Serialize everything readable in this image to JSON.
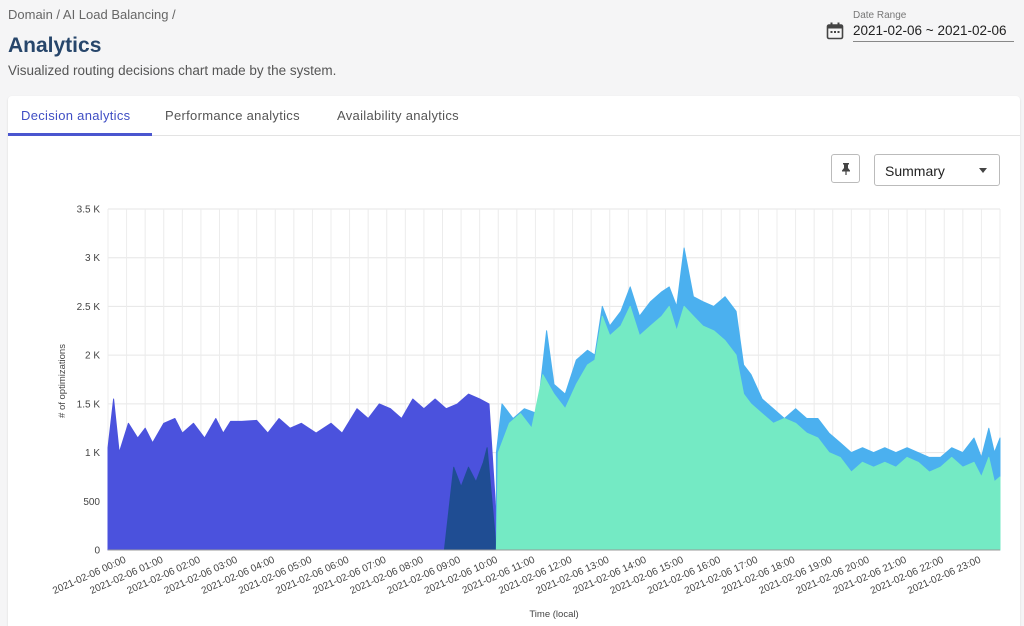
{
  "header": {
    "breadcrumb": "Domain / AI Load Balancing /",
    "title": "Analytics",
    "subtitle": "Visualized routing decisions chart made by the system.",
    "date_range_label": "Date Range",
    "date_range_value": "2021-02-06 ~ 2021-02-06"
  },
  "tabs": [
    {
      "label": "Decision analytics",
      "active": true
    },
    {
      "label": "Performance analytics",
      "active": false
    },
    {
      "label": "Availability analytics",
      "active": false
    }
  ],
  "toolbar": {
    "pin_icon": "pin-icon",
    "view_select_value": "Summary"
  },
  "chart_data": {
    "type": "area",
    "xlabel": "Time (local)",
    "ylabel": "# of optimizations",
    "ylim": [
      0,
      3500
    ],
    "y_ticks": [
      0,
      500,
      1000,
      1500,
      2000,
      2500,
      3000,
      3500
    ],
    "y_tick_labels": [
      "0",
      "500",
      "1 K",
      "1.5 K",
      "2 K",
      "2.5 K",
      "3 K",
      "3.5 K"
    ],
    "x_range_hours": [
      0,
      24
    ],
    "x_tick_labels": [
      "2021-02-06 00:00",
      "2021-02-06 01:00",
      "2021-02-06 02:00",
      "2021-02-06 03:00",
      "2021-02-06 04:00",
      "2021-02-06 05:00",
      "2021-02-06 06:00",
      "2021-02-06 07:00",
      "2021-02-06 08:00",
      "2021-02-06 09:00",
      "2021-02-06 10:00",
      "2021-02-06 11:00",
      "2021-02-06 12:00",
      "2021-02-06 13:00",
      "2021-02-06 14:00",
      "2021-02-06 15:00",
      "2021-02-06 16:00",
      "2021-02-06 17:00",
      "2021-02-06 18:00",
      "2021-02-06 19:00",
      "2021-02-06 20:00",
      "2021-02-06 21:00",
      "2021-02-06 22:00",
      "2021-02-06 23:00"
    ],
    "grid": true,
    "colors": {
      "blue": "#4b52dd",
      "navy": "#1f4d93",
      "lightblue": "#4bb0ef",
      "green": "#74eac4"
    },
    "series": [
      {
        "color": "#4b52dd",
        "points": [
          [
            0,
            1050
          ],
          [
            0.15,
            1550
          ],
          [
            0.3,
            1000
          ],
          [
            0.55,
            1300
          ],
          [
            0.8,
            1150
          ],
          [
            1.0,
            1250
          ],
          [
            1.2,
            1100
          ],
          [
            1.5,
            1300
          ],
          [
            1.8,
            1350
          ],
          [
            2.0,
            1200
          ],
          [
            2.3,
            1300
          ],
          [
            2.6,
            1150
          ],
          [
            2.9,
            1350
          ],
          [
            3.1,
            1200
          ],
          [
            3.3,
            1320
          ],
          [
            3.6,
            1320
          ],
          [
            4.0,
            1330
          ],
          [
            4.3,
            1200
          ],
          [
            4.6,
            1350
          ],
          [
            4.9,
            1250
          ],
          [
            5.2,
            1300
          ],
          [
            5.6,
            1200
          ],
          [
            6.0,
            1300
          ],
          [
            6.3,
            1200
          ],
          [
            6.7,
            1450
          ],
          [
            7.0,
            1350
          ],
          [
            7.3,
            1500
          ],
          [
            7.6,
            1450
          ],
          [
            7.9,
            1350
          ],
          [
            8.2,
            1550
          ],
          [
            8.5,
            1450
          ],
          [
            8.8,
            1550
          ],
          [
            9.1,
            1450
          ],
          [
            9.4,
            1500
          ],
          [
            9.7,
            1600
          ],
          [
            10.0,
            1550
          ],
          [
            10.25,
            1500
          ],
          [
            10.5,
            0
          ]
        ]
      },
      {
        "color": "#1f4d93",
        "points": [
          [
            9.05,
            0
          ],
          [
            9.3,
            850
          ],
          [
            9.5,
            650
          ],
          [
            9.7,
            850
          ],
          [
            9.9,
            700
          ],
          [
            10.1,
            900
          ],
          [
            10.2,
            1050
          ],
          [
            10.45,
            0
          ]
        ]
      },
      {
        "color": "#4bb0ef",
        "points": [
          [
            10.45,
            1000
          ],
          [
            10.6,
            1500
          ],
          [
            10.9,
            1350
          ],
          [
            11.2,
            1450
          ],
          [
            11.55,
            1400
          ],
          [
            11.8,
            2250
          ],
          [
            12.0,
            1700
          ],
          [
            12.3,
            1600
          ],
          [
            12.6,
            1950
          ],
          [
            12.9,
            2050
          ],
          [
            13.1,
            2000
          ],
          [
            13.3,
            2500
          ],
          [
            13.5,
            2300
          ],
          [
            13.8,
            2450
          ],
          [
            14.05,
            2700
          ],
          [
            14.3,
            2400
          ],
          [
            14.6,
            2550
          ],
          [
            14.9,
            2650
          ],
          [
            15.1,
            2700
          ],
          [
            15.3,
            2500
          ],
          [
            15.5,
            3100
          ],
          [
            15.75,
            2600
          ],
          [
            16.0,
            2550
          ],
          [
            16.3,
            2500
          ],
          [
            16.6,
            2600
          ],
          [
            16.9,
            2450
          ],
          [
            17.1,
            1900
          ],
          [
            17.3,
            1800
          ],
          [
            17.6,
            1550
          ],
          [
            17.9,
            1450
          ],
          [
            18.2,
            1350
          ],
          [
            18.5,
            1450
          ],
          [
            18.8,
            1350
          ],
          [
            19.1,
            1350
          ],
          [
            19.4,
            1200
          ],
          [
            19.7,
            1100
          ],
          [
            20.0,
            1000
          ],
          [
            20.3,
            1050
          ],
          [
            20.6,
            1000
          ],
          [
            20.9,
            1050
          ],
          [
            21.2,
            1000
          ],
          [
            21.5,
            1050
          ],
          [
            21.8,
            1000
          ],
          [
            22.1,
            950
          ],
          [
            22.4,
            950
          ],
          [
            22.7,
            1050
          ],
          [
            23.0,
            1000
          ],
          [
            23.3,
            1150
          ],
          [
            23.5,
            950
          ],
          [
            23.7,
            1250
          ],
          [
            23.85,
            1000
          ],
          [
            24.0,
            1150
          ]
        ]
      },
      {
        "color": "#74eac4",
        "points": [
          [
            10.45,
            0
          ],
          [
            10.5,
            1000
          ],
          [
            10.8,
            1300
          ],
          [
            11.1,
            1400
          ],
          [
            11.4,
            1250
          ],
          [
            11.7,
            1800
          ],
          [
            12.0,
            1600
          ],
          [
            12.3,
            1450
          ],
          [
            12.6,
            1700
          ],
          [
            12.9,
            1900
          ],
          [
            13.1,
            1950
          ],
          [
            13.3,
            2400
          ],
          [
            13.5,
            2200
          ],
          [
            13.8,
            2300
          ],
          [
            14.05,
            2500
          ],
          [
            14.3,
            2200
          ],
          [
            14.6,
            2300
          ],
          [
            14.9,
            2400
          ],
          [
            15.1,
            2500
          ],
          [
            15.3,
            2250
          ],
          [
            15.5,
            2500
          ],
          [
            15.75,
            2400
          ],
          [
            16.0,
            2300
          ],
          [
            16.3,
            2250
          ],
          [
            16.6,
            2150
          ],
          [
            16.9,
            2000
          ],
          [
            17.1,
            1600
          ],
          [
            17.3,
            1500
          ],
          [
            17.6,
            1400
          ],
          [
            17.9,
            1300
          ],
          [
            18.2,
            1350
          ],
          [
            18.5,
            1300
          ],
          [
            18.8,
            1200
          ],
          [
            19.1,
            1150
          ],
          [
            19.4,
            1000
          ],
          [
            19.7,
            950
          ],
          [
            20.0,
            800
          ],
          [
            20.3,
            900
          ],
          [
            20.6,
            850
          ],
          [
            20.9,
            900
          ],
          [
            21.2,
            850
          ],
          [
            21.5,
            950
          ],
          [
            21.8,
            900
          ],
          [
            22.1,
            800
          ],
          [
            22.4,
            850
          ],
          [
            22.7,
            950
          ],
          [
            23.0,
            850
          ],
          [
            23.3,
            900
          ],
          [
            23.5,
            750
          ],
          [
            23.7,
            950
          ],
          [
            23.85,
            700
          ],
          [
            24.0,
            750
          ],
          [
            24.0,
            0
          ]
        ]
      }
    ]
  }
}
